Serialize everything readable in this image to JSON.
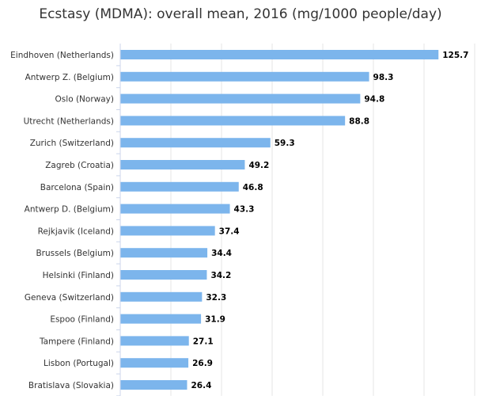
{
  "chart_data": {
    "type": "bar",
    "orientation": "horizontal",
    "title": "Ecstasy (MDMA): overall mean, 2016 (mg/1000 people/day)",
    "categories": [
      "Eindhoven (Netherlands)",
      "Antwerp Z. (Belgium)",
      "Oslo (Norway)",
      "Utrecht (Netherlands)",
      "Zurich (Switzerland)",
      "Zagreb (Croatia)",
      "Barcelona (Spain)",
      "Antwerp D. (Belgium)",
      "Rejkjavik (Iceland)",
      "Brussels (Belgium)",
      "Helsinki (Finland)",
      "Geneva (Switzerland)",
      "Espoo (Finland)",
      "Tampere (Finland)",
      "Lisbon (Portugal)",
      "Bratislava (Slovakia)"
    ],
    "values": [
      125.7,
      98.3,
      94.8,
      88.8,
      59.3,
      49.2,
      46.8,
      43.3,
      37.4,
      34.4,
      34.2,
      32.3,
      31.9,
      27.1,
      26.9,
      26.4
    ],
    "value_labels": [
      "125.7",
      "98.3",
      "94.8",
      "88.8",
      "59.3",
      "49.2",
      "46.8",
      "43.3",
      "37.4",
      "34.4",
      "34.2",
      "32.3",
      "31.9",
      "27.1",
      "26.9",
      "26.4"
    ],
    "xlim": [
      0,
      140
    ],
    "grid": true,
    "bar_color": "#7cb5ec",
    "grid_color": "#e6e6e6",
    "xlabel": "",
    "ylabel": ""
  }
}
